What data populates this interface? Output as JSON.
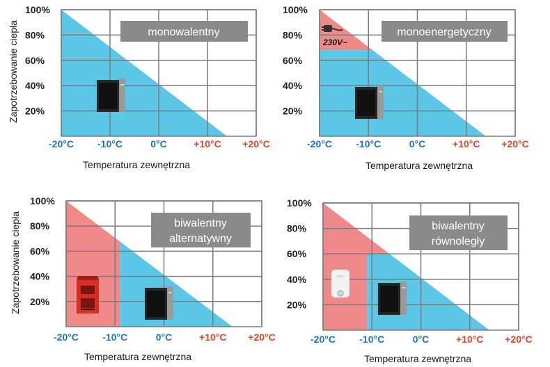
{
  "colors": {
    "heat_pump_area": "#5cc6e6",
    "other_source_area": "#f08a8a",
    "grid": "#7a7a7a",
    "negative_temp": "#1f74b8",
    "positive_temp": "#e5412f",
    "label_box": "#8a8a8a"
  },
  "y_axis_label": "Zapotrzebowanie ciepła",
  "x_axis_label": "Temperatura zewnętrzna",
  "chart_data": [
    {
      "type": "area",
      "mode_label": [
        "monowalentny"
      ],
      "y_ticks": [
        "100%",
        "80%",
        "60%",
        "40%",
        "20%"
      ],
      "x_ticks": [
        "-20°C",
        "-10°C",
        "0°C",
        "+10°C",
        "+20°C"
      ],
      "x_values": [
        -20,
        -10,
        0,
        10,
        20
      ],
      "xlim": [
        -20,
        20
      ],
      "ylim": [
        0,
        100
      ],
      "demand_line": [
        [
          -20,
          100
        ],
        [
          14,
          0
        ]
      ],
      "heat_pump_region": "below-line",
      "other_source": "none",
      "icons": [
        "heat-pump-unit-icon"
      ]
    },
    {
      "type": "area",
      "mode_label": [
        "monoenergetyczny"
      ],
      "y_ticks": [
        "100%",
        "80%",
        "60%",
        "40%",
        "20%"
      ],
      "x_ticks": [
        "-20°C",
        "-10°C",
        "0°C",
        "+10°C",
        "+20°C"
      ],
      "x_values": [
        -20,
        -10,
        0,
        10,
        20
      ],
      "xlim": [
        -20,
        20
      ],
      "ylim": [
        0,
        100
      ],
      "demand_line": [
        [
          -20,
          100
        ],
        [
          14,
          0
        ]
      ],
      "heat_pump_max_share": 68,
      "other_source": "electric heater above 68%",
      "voltage_label": "230V~",
      "icons": [
        "heat-pump-unit-icon",
        "power-plug-icon"
      ]
    },
    {
      "type": "area",
      "mode_label": [
        "biwalentny",
        "alternatywny"
      ],
      "y_ticks": [
        "100%",
        "80%",
        "60%",
        "40%",
        "20%"
      ],
      "x_ticks": [
        "-20°C",
        "-10°C",
        "0°C",
        "+10°C",
        "+20°C"
      ],
      "x_values": [
        -20,
        -10,
        0,
        10,
        20
      ],
      "xlim": [
        -20,
        20
      ],
      "ylim": [
        0,
        100
      ],
      "demand_line": [
        [
          -20,
          100
        ],
        [
          14,
          0
        ]
      ],
      "switch_temperature": -9,
      "other_source": "boiler only below switch temperature",
      "icons": [
        "heat-pump-unit-icon",
        "boiler-icon"
      ]
    },
    {
      "type": "area",
      "mode_label": [
        "biwalentny",
        "równoległy"
      ],
      "y_ticks": [
        "100%",
        "80%",
        "60%",
        "40%",
        "20%"
      ],
      "x_ticks": [
        "-20°C",
        "-10°C",
        "0°C",
        "+10°C",
        "+20°C"
      ],
      "x_values": [
        -20,
        -10,
        0,
        10,
        20
      ],
      "xlim": [
        -20,
        20
      ],
      "ylim": [
        0,
        100
      ],
      "demand_line": [
        [
          -20,
          100
        ],
        [
          14,
          0
        ]
      ],
      "switch_temperature": -11,
      "heat_pump_max_share": 60,
      "other_source": "gas boiler in parallel above 60%",
      "icons": [
        "heat-pump-unit-icon",
        "gas-boiler-icon"
      ]
    }
  ]
}
